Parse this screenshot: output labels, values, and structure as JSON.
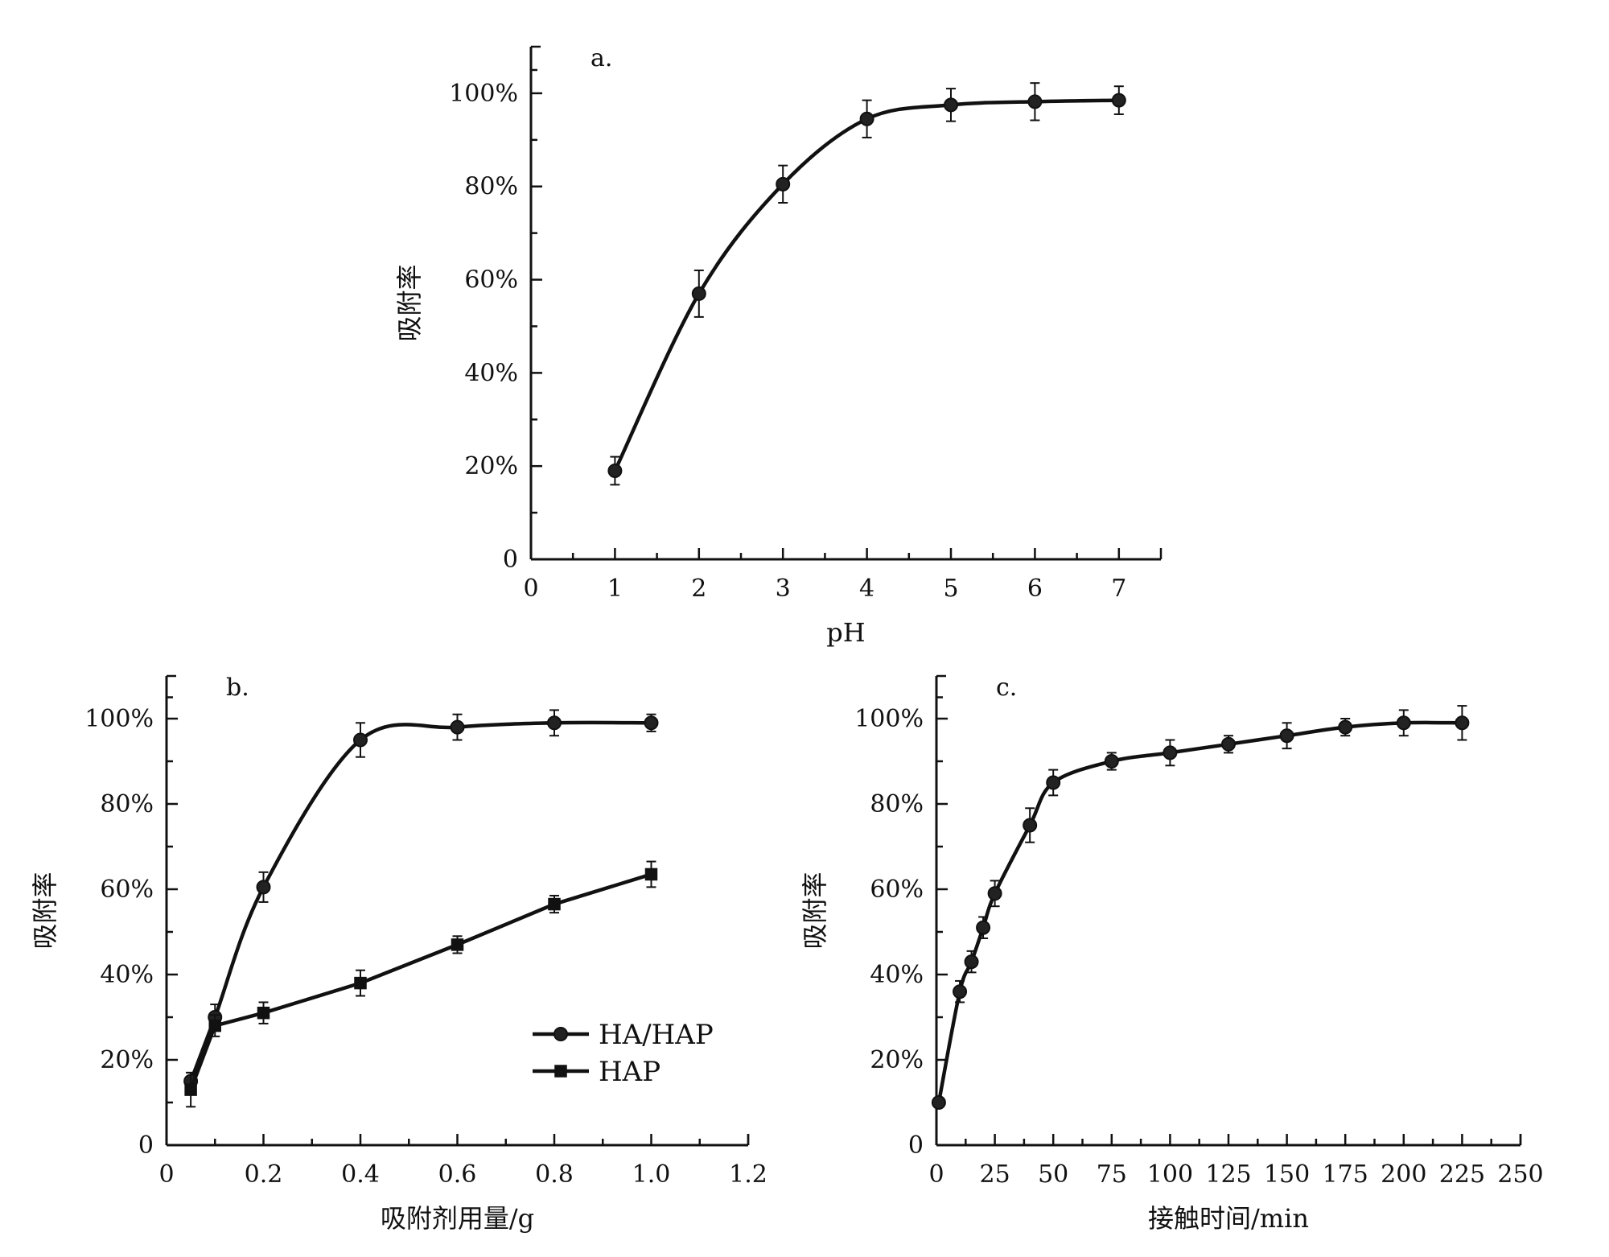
{
  "chart_data": [
    {
      "id": "a",
      "type": "line",
      "panel_label": "a.",
      "xlabel": "pH",
      "ylabel": "吸附率",
      "xlim": [
        0,
        7.5
      ],
      "ylim": [
        0,
        1.1
      ],
      "xticks": [
        0,
        1,
        2,
        3,
        4,
        5,
        6,
        7
      ],
      "xtick_labels": [
        "0",
        "1",
        "2",
        "3",
        "4",
        "5",
        "6",
        "7"
      ],
      "yticks": [
        0,
        0.2,
        0.4,
        0.6,
        0.8,
        1.0
      ],
      "ytick_labels": [
        "0",
        "20%",
        "40%",
        "60%",
        "80%",
        "100%"
      ],
      "grid": false,
      "series": [
        {
          "marker": "circle",
          "x": [
            1,
            2,
            3,
            4,
            5,
            6,
            7
          ],
          "y": [
            0.19,
            0.57,
            0.805,
            0.945,
            0.975,
            0.982,
            0.985
          ],
          "err": [
            0.03,
            0.05,
            0.04,
            0.04,
            0.035,
            0.04,
            0.03
          ]
        }
      ]
    },
    {
      "id": "b",
      "type": "line",
      "panel_label": "b.",
      "xlabel": "吸附剂用量/g",
      "ylabel": "吸附率",
      "xlim": [
        0,
        1.2
      ],
      "ylim": [
        0,
        1.1
      ],
      "xticks": [
        0,
        0.2,
        0.4,
        0.6,
        0.8,
        1.0,
        1.2
      ],
      "xtick_labels": [
        "0",
        "0.2",
        "0.4",
        "0.6",
        "0.8",
        "1.0",
        "1.2"
      ],
      "yticks": [
        0,
        0.2,
        0.4,
        0.6,
        0.8,
        1.0
      ],
      "ytick_labels": [
        "0",
        "20%",
        "40%",
        "60%",
        "80%",
        "100%"
      ],
      "grid": false,
      "legend_position": "lower-right",
      "series": [
        {
          "name": "HA/HAP",
          "marker": "circle",
          "x": [
            0.05,
            0.1,
            0.2,
            0.4,
            0.6,
            0.8,
            1.0
          ],
          "y": [
            0.15,
            0.3,
            0.605,
            0.95,
            0.98,
            0.99,
            0.99
          ],
          "err": [
            0.02,
            0.03,
            0.035,
            0.04,
            0.03,
            0.03,
            0.02
          ]
        },
        {
          "name": "HAP",
          "marker": "square",
          "x": [
            0.05,
            0.1,
            0.2,
            0.4,
            0.6,
            0.8,
            1.0
          ],
          "y": [
            0.13,
            0.28,
            0.31,
            0.38,
            0.47,
            0.565,
            0.635
          ],
          "err": [
            0.04,
            0.025,
            0.025,
            0.03,
            0.02,
            0.02,
            0.03
          ]
        }
      ]
    },
    {
      "id": "c",
      "type": "line",
      "panel_label": "c.",
      "xlabel": "接触时间/min",
      "ylabel": "吸附率",
      "xlim": [
        0,
        250
      ],
      "ylim": [
        0,
        1.1
      ],
      "xticks": [
        0,
        25,
        50,
        75,
        100,
        125,
        150,
        175,
        200,
        225,
        250
      ],
      "xtick_labels": [
        "0",
        "25",
        "50",
        "75",
        "100",
        "125",
        "150",
        "175",
        "200",
        "225",
        "250"
      ],
      "yticks": [
        0,
        0.2,
        0.4,
        0.6,
        0.8,
        1.0
      ],
      "ytick_labels": [
        "0",
        "20%",
        "40%",
        "60%",
        "80%",
        "100%"
      ],
      "grid": false,
      "series": [
        {
          "marker": "circle",
          "x": [
            1,
            10,
            15,
            20,
            25,
            40,
            50,
            75,
            100,
            125,
            150,
            175,
            200,
            225
          ],
          "y": [
            0.1,
            0.36,
            0.43,
            0.51,
            0.59,
            0.75,
            0.85,
            0.9,
            0.92,
            0.94,
            0.96,
            0.98,
            0.99,
            0.99
          ],
          "err": [
            0.01,
            0.025,
            0.025,
            0.025,
            0.03,
            0.04,
            0.03,
            0.02,
            0.03,
            0.02,
            0.03,
            0.02,
            0.03,
            0.04
          ]
        }
      ]
    }
  ]
}
